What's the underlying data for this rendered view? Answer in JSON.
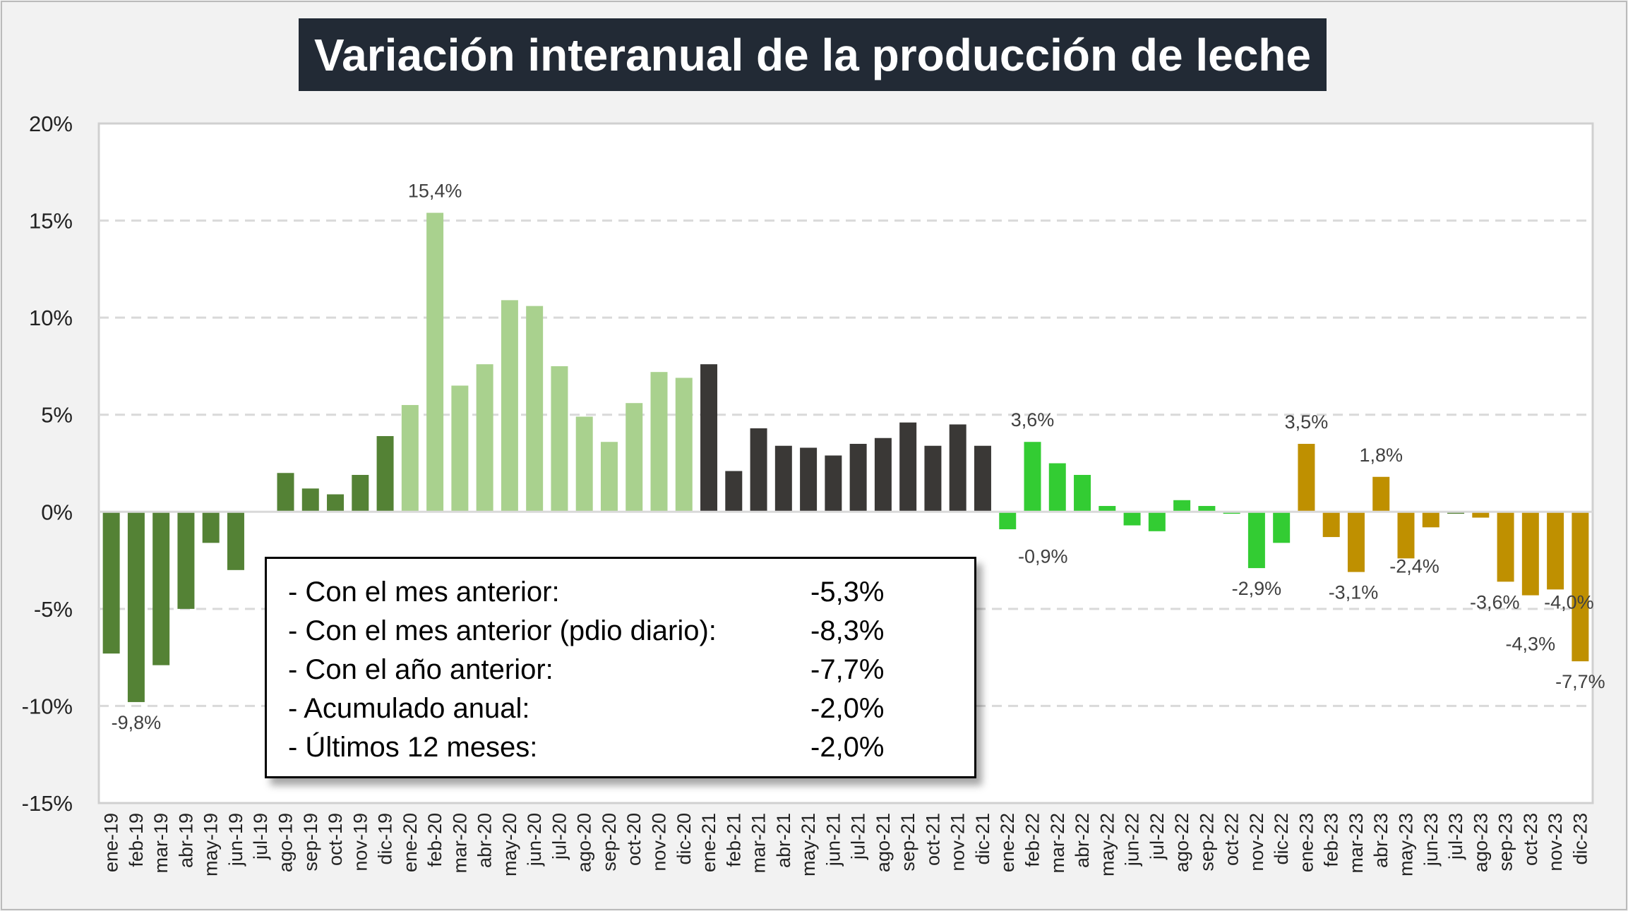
{
  "chart_data": {
    "type": "bar",
    "title": "Variación interanual de la producción de leche",
    "xlabel": "",
    "ylabel": "",
    "ylim": [
      -15,
      20
    ],
    "yticks": [
      "20%",
      "15%",
      "10%",
      "5%",
      "0%",
      "-5%",
      "-10%",
      "-15%"
    ],
    "yticks_values": [
      20,
      15,
      10,
      5,
      0,
      -5,
      -10,
      -15
    ],
    "grid": true,
    "categories": [
      "ene-19",
      "feb-19",
      "mar-19",
      "abr-19",
      "may-19",
      "jun-19",
      "jul-19",
      "ago-19",
      "sep-19",
      "oct-19",
      "nov-19",
      "dic-19",
      "ene-20",
      "feb-20",
      "mar-20",
      "abr-20",
      "may-20",
      "jun-20",
      "jul-20",
      "ago-20",
      "sep-20",
      "oct-20",
      "nov-20",
      "dic-20",
      "ene-21",
      "feb-21",
      "mar-21",
      "abr-21",
      "may-21",
      "jun-21",
      "jul-21",
      "ago-21",
      "sep-21",
      "oct-21",
      "nov-21",
      "dic-21",
      "ene-22",
      "feb-22",
      "mar-22",
      "abr-22",
      "may-22",
      "jun-22",
      "jul-22",
      "ago-22",
      "sep-22",
      "oct-22",
      "nov-22",
      "dic-22",
      "ene-23",
      "feb-23",
      "mar-23",
      "abr-23",
      "may-23",
      "jun-23",
      "jul-23",
      "ago-23",
      "sep-23",
      "oct-23",
      "nov-23",
      "dic-23"
    ],
    "values": [
      -7.3,
      -9.8,
      -7.9,
      -5.0,
      -1.6,
      -3.0,
      0.0,
      2.0,
      1.2,
      0.9,
      1.9,
      3.9,
      5.5,
      15.4,
      6.5,
      7.6,
      10.9,
      10.6,
      7.5,
      4.9,
      3.6,
      5.6,
      7.2,
      6.9,
      7.6,
      2.1,
      4.3,
      3.4,
      3.3,
      2.9,
      3.5,
      3.8,
      4.6,
      3.4,
      4.5,
      3.4,
      -0.9,
      3.6,
      2.5,
      1.9,
      0.3,
      -0.7,
      -1.0,
      0.6,
      0.3,
      -0.1,
      -2.9,
      -1.6,
      3.5,
      -1.3,
      -3.1,
      1.8,
      -2.4,
      -0.8,
      -0.1,
      -0.3,
      -3.6,
      -4.3,
      -4.0,
      -7.7
    ],
    "colors": [
      "#548235",
      "#548235",
      "#548235",
      "#548235",
      "#548235",
      "#548235",
      "#548235",
      "#548235",
      "#548235",
      "#548235",
      "#548235",
      "#548235",
      "#a9d18e",
      "#a9d18e",
      "#a9d18e",
      "#a9d18e",
      "#a9d18e",
      "#a9d18e",
      "#a9d18e",
      "#a9d18e",
      "#a9d18e",
      "#a9d18e",
      "#a9d18e",
      "#a9d18e",
      "#3a3836",
      "#3a3836",
      "#3a3836",
      "#3a3836",
      "#3a3836",
      "#3a3836",
      "#3a3836",
      "#3a3836",
      "#3a3836",
      "#3a3836",
      "#3a3836",
      "#3a3836",
      "#33cc33",
      "#33cc33",
      "#33cc33",
      "#33cc33",
      "#33cc33",
      "#33cc33",
      "#33cc33",
      "#33cc33",
      "#33cc33",
      "#33cc33",
      "#33cc33",
      "#33cc33",
      "#bf9000",
      "#bf9000",
      "#bf9000",
      "#bf9000",
      "#bf9000",
      "#bf9000",
      "#548235",
      "#bf9000",
      "#bf9000",
      "#bf9000",
      "#bf9000",
      "#bf9000"
    ],
    "data_labels": [
      {
        "index": 1,
        "text": "-9,8%"
      },
      {
        "index": 13,
        "text": "15,4%"
      },
      {
        "index": 36,
        "text": "-0,9%"
      },
      {
        "index": 37,
        "text": "3,6%"
      },
      {
        "index": 46,
        "text": "-2,9%"
      },
      {
        "index": 48,
        "text": "3,5%"
      },
      {
        "index": 50,
        "text": "-3,1%"
      },
      {
        "index": 51,
        "text": "1,8%"
      },
      {
        "index": 52,
        "text": "-2,4%"
      },
      {
        "index": 56,
        "text": "-3,6%"
      },
      {
        "index": 57,
        "text": "-4,3%"
      },
      {
        "index": 58,
        "text": "-4,0%"
      },
      {
        "index": 59,
        "text": "-7,7%"
      }
    ]
  },
  "summary": [
    {
      "label": "- Con el mes anterior:",
      "value": "-5,3%"
    },
    {
      "label": "- Con el mes anterior (pdio diario):",
      "value": "-8,3%"
    },
    {
      "label": "- Con el año anterior:",
      "value": "-7,7%"
    },
    {
      "label": "- Acumulado anual:",
      "value": "-2,0%"
    },
    {
      "label": "- Últimos 12 meses:",
      "value": "-2,0%"
    }
  ]
}
